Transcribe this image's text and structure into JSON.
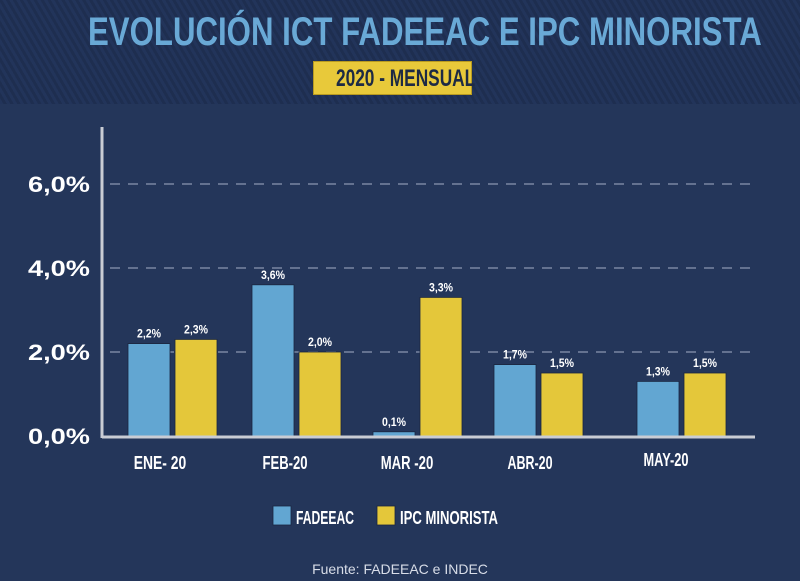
{
  "header": {
    "title": "EVOLUCIÓN ICT FADEEAC E IPC MINORISTA",
    "subtitle": "2020 - MENSUAL"
  },
  "chart_data": {
    "type": "bar",
    "title": "EVOLUCIÓN ICT FADEEAC E IPC MINORISTA",
    "subtitle": "2020 - MENSUAL",
    "categories": [
      "ENE- 20",
      "FEB-20",
      "MAR -20",
      "ABR-20",
      "MAY-20"
    ],
    "series": [
      {
        "name": "FADEEAC",
        "values": [
          2.2,
          3.6,
          0.1,
          1.7,
          1.3
        ],
        "labels": [
          "2,2%",
          "3,6%",
          "0,1%",
          "1,7%",
          "1,3%"
        ],
        "color": "#62a6d2"
      },
      {
        "name": "IPC MINORISTA",
        "values": [
          2.3,
          2.0,
          3.3,
          1.5,
          1.5
        ],
        "labels": [
          "2,3%",
          "2,0%",
          "3,3%",
          "1,5%",
          "1,5%"
        ],
        "color": "#e4c73a"
      }
    ],
    "yticks": [
      0,
      2,
      4,
      6
    ],
    "ytick_labels": [
      "0,0%",
      "2,0%",
      "4,0%",
      "6,0%"
    ],
    "ylim": [
      0,
      7
    ],
    "xlabel": "",
    "ylabel": "",
    "grid": true,
    "legend": "bottom-center"
  },
  "footer": {
    "source": "Fuente: FADEEAC e INDEC"
  },
  "colors": {
    "background": "#24365a",
    "title": "#69a9d6",
    "subtitle_bg": "#e8c93a",
    "axis": "#c9ccd4",
    "grid": "#8a97b0"
  }
}
